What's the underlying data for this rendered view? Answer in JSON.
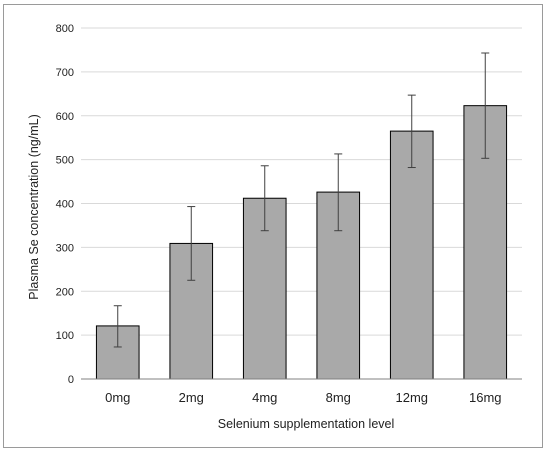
{
  "chart_data": {
    "type": "bar",
    "title": "",
    "xlabel": "Selenium supplementation level",
    "ylabel": "Plasma Se concentration (ng/mL)",
    "categories": [
      "0mg",
      "2mg",
      "4mg",
      "8mg",
      "12mg",
      "16mg"
    ],
    "series": [
      {
        "values": [
          121,
          309,
          412,
          426,
          565,
          623
        ],
        "error_low": [
          73,
          225,
          338,
          338,
          482,
          503
        ],
        "error_high": [
          167,
          393,
          486,
          513,
          647,
          743
        ]
      }
    ],
    "ylim": [
      0,
      800
    ],
    "yticks": [
      0,
      100,
      200,
      300,
      400,
      500,
      600,
      700,
      800
    ],
    "grid": true,
    "legend": "none",
    "colors": {
      "bar_fill": "#a9a9a9",
      "bar_stroke": "#000000",
      "error_bar": "#404040",
      "gridline": "#d9d9d9",
      "axis": "#808080"
    }
  }
}
